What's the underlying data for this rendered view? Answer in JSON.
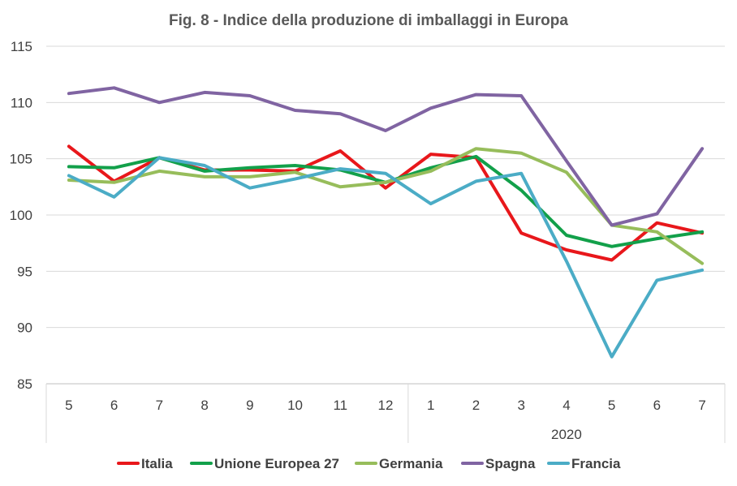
{
  "chart_data": {
    "type": "line",
    "title": "Fig. 8 - Indice della produzione di imballaggi in Europa",
    "xlabel": "",
    "ylabel": "",
    "categories": [
      "5",
      "6",
      "7",
      "8",
      "9",
      "10",
      "11",
      "12",
      "1",
      "2",
      "3",
      "4",
      "5",
      "6",
      "7"
    ],
    "year_label": "2020",
    "ylim": [
      85,
      115
    ],
    "yticks": [
      "85",
      "90",
      "95",
      "100",
      "105",
      "110",
      "115"
    ],
    "grid": true,
    "legend_position": "bottom",
    "series": [
      {
        "name": "Italia",
        "color": "#e8171b",
        "values": [
          106.1,
          103.0,
          105.1,
          104.0,
          104.0,
          103.9,
          105.7,
          102.4,
          105.4,
          105.1,
          98.4,
          96.9,
          96.0,
          99.3,
          98.4
        ]
      },
      {
        "name": "Unione Europea 27",
        "color": "#12a04a",
        "values": [
          104.3,
          104.2,
          105.1,
          103.9,
          104.2,
          104.4,
          104.0,
          102.9,
          104.2,
          105.2,
          102.2,
          98.2,
          97.2,
          97.9,
          98.5
        ]
      },
      {
        "name": "Germania",
        "color": "#97bd5b",
        "values": [
          103.1,
          102.9,
          103.9,
          103.4,
          103.4,
          103.8,
          102.5,
          102.9,
          103.9,
          105.9,
          105.5,
          103.8,
          99.1,
          98.5,
          95.7
        ]
      },
      {
        "name": "Spagna",
        "color": "#8064a2",
        "values": [
          110.8,
          111.3,
          110.0,
          110.9,
          110.6,
          109.3,
          109.0,
          107.5,
          109.5,
          110.7,
          110.6,
          104.8,
          99.1,
          100.1,
          105.9
        ]
      },
      {
        "name": "Francia",
        "color": "#4bacc6",
        "values": [
          103.5,
          101.6,
          105.1,
          104.4,
          102.4,
          103.2,
          104.1,
          103.7,
          101.0,
          103.0,
          103.7,
          95.9,
          87.4,
          94.2,
          95.1
        ]
      }
    ]
  }
}
